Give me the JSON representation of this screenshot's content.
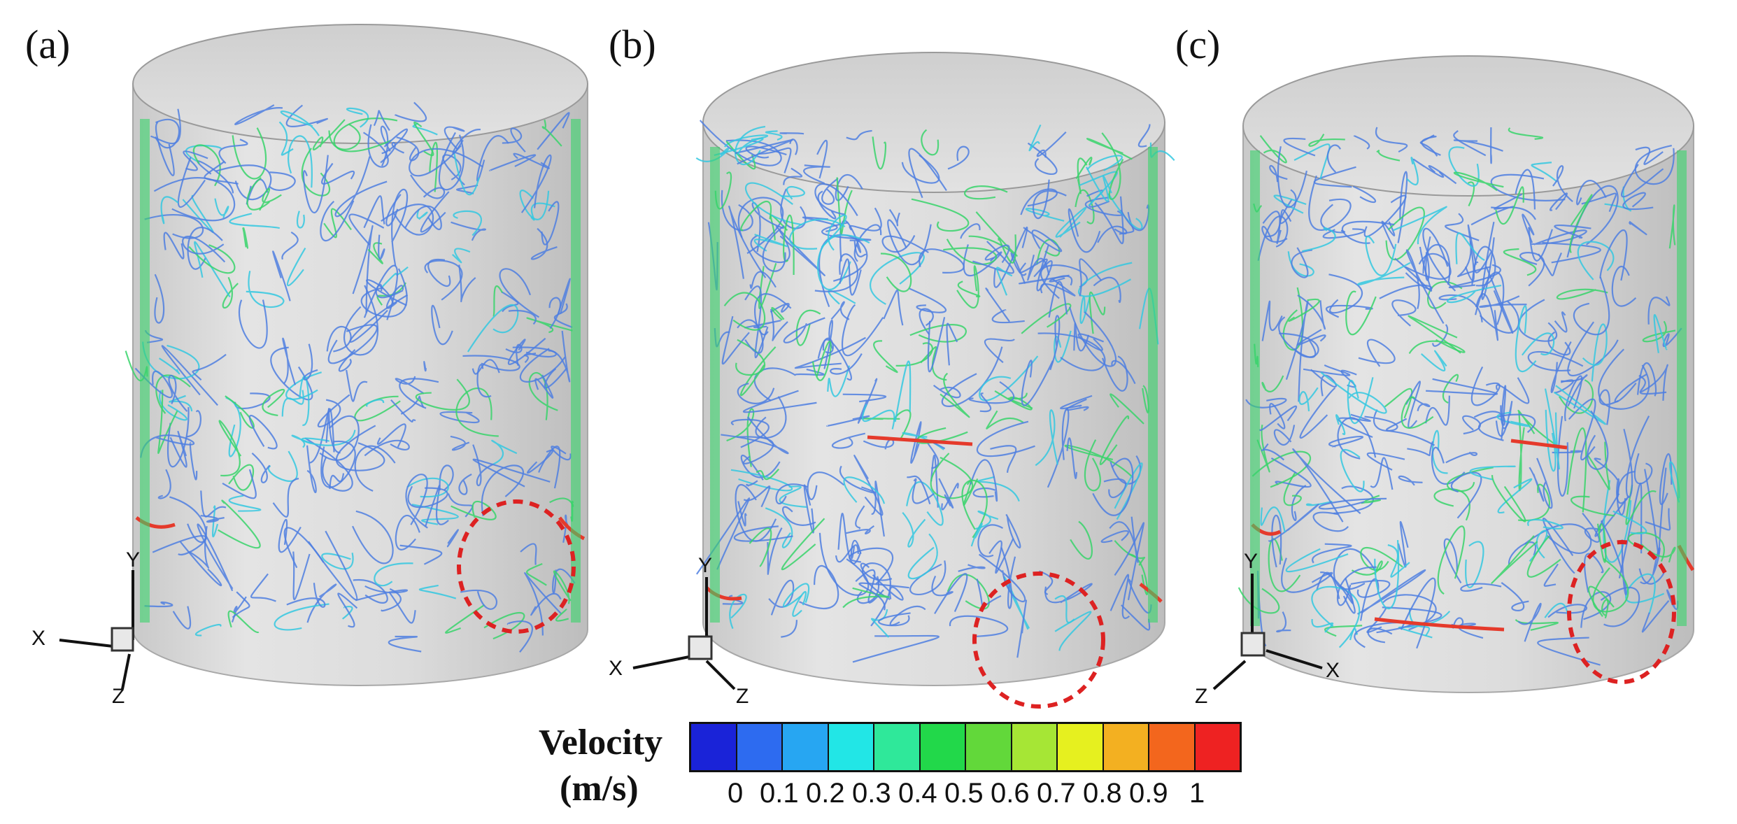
{
  "panels": [
    {
      "label": "(a)",
      "axes": {
        "y": "Y",
        "x": "X",
        "z": "Z"
      }
    },
    {
      "label": "(b)",
      "axes": {
        "y": "Y",
        "x": "X",
        "z": "Z"
      }
    },
    {
      "label": "(c)",
      "axes": {
        "y": "Y",
        "x": "X",
        "z": "Z"
      }
    }
  ],
  "legend": {
    "title_line1": "Velocity",
    "title_line2": "(m/s)",
    "ticks": [
      "0",
      "0.1",
      "0.2",
      "0.3",
      "0.4",
      "0.5",
      "0.6",
      "0.7",
      "0.8",
      "0.9",
      "1"
    ],
    "colors": [
      "#1a23d8",
      "#2d6bf0",
      "#27a6f2",
      "#22e6e6",
      "#2fe89a",
      "#22d84a",
      "#62d83a",
      "#a6e635",
      "#e6f01f",
      "#f3b021",
      "#f3661d",
      "#ee2222"
    ]
  },
  "colors": {
    "streamline_blue": "#4f7fe0",
    "streamline_cyan": "#34c8e0",
    "streamline_green": "#38d46b",
    "streamline_red": "#e53a2b",
    "highlight_circle": "#dd2222",
    "cylinder_fill": "#d7d7d7"
  }
}
